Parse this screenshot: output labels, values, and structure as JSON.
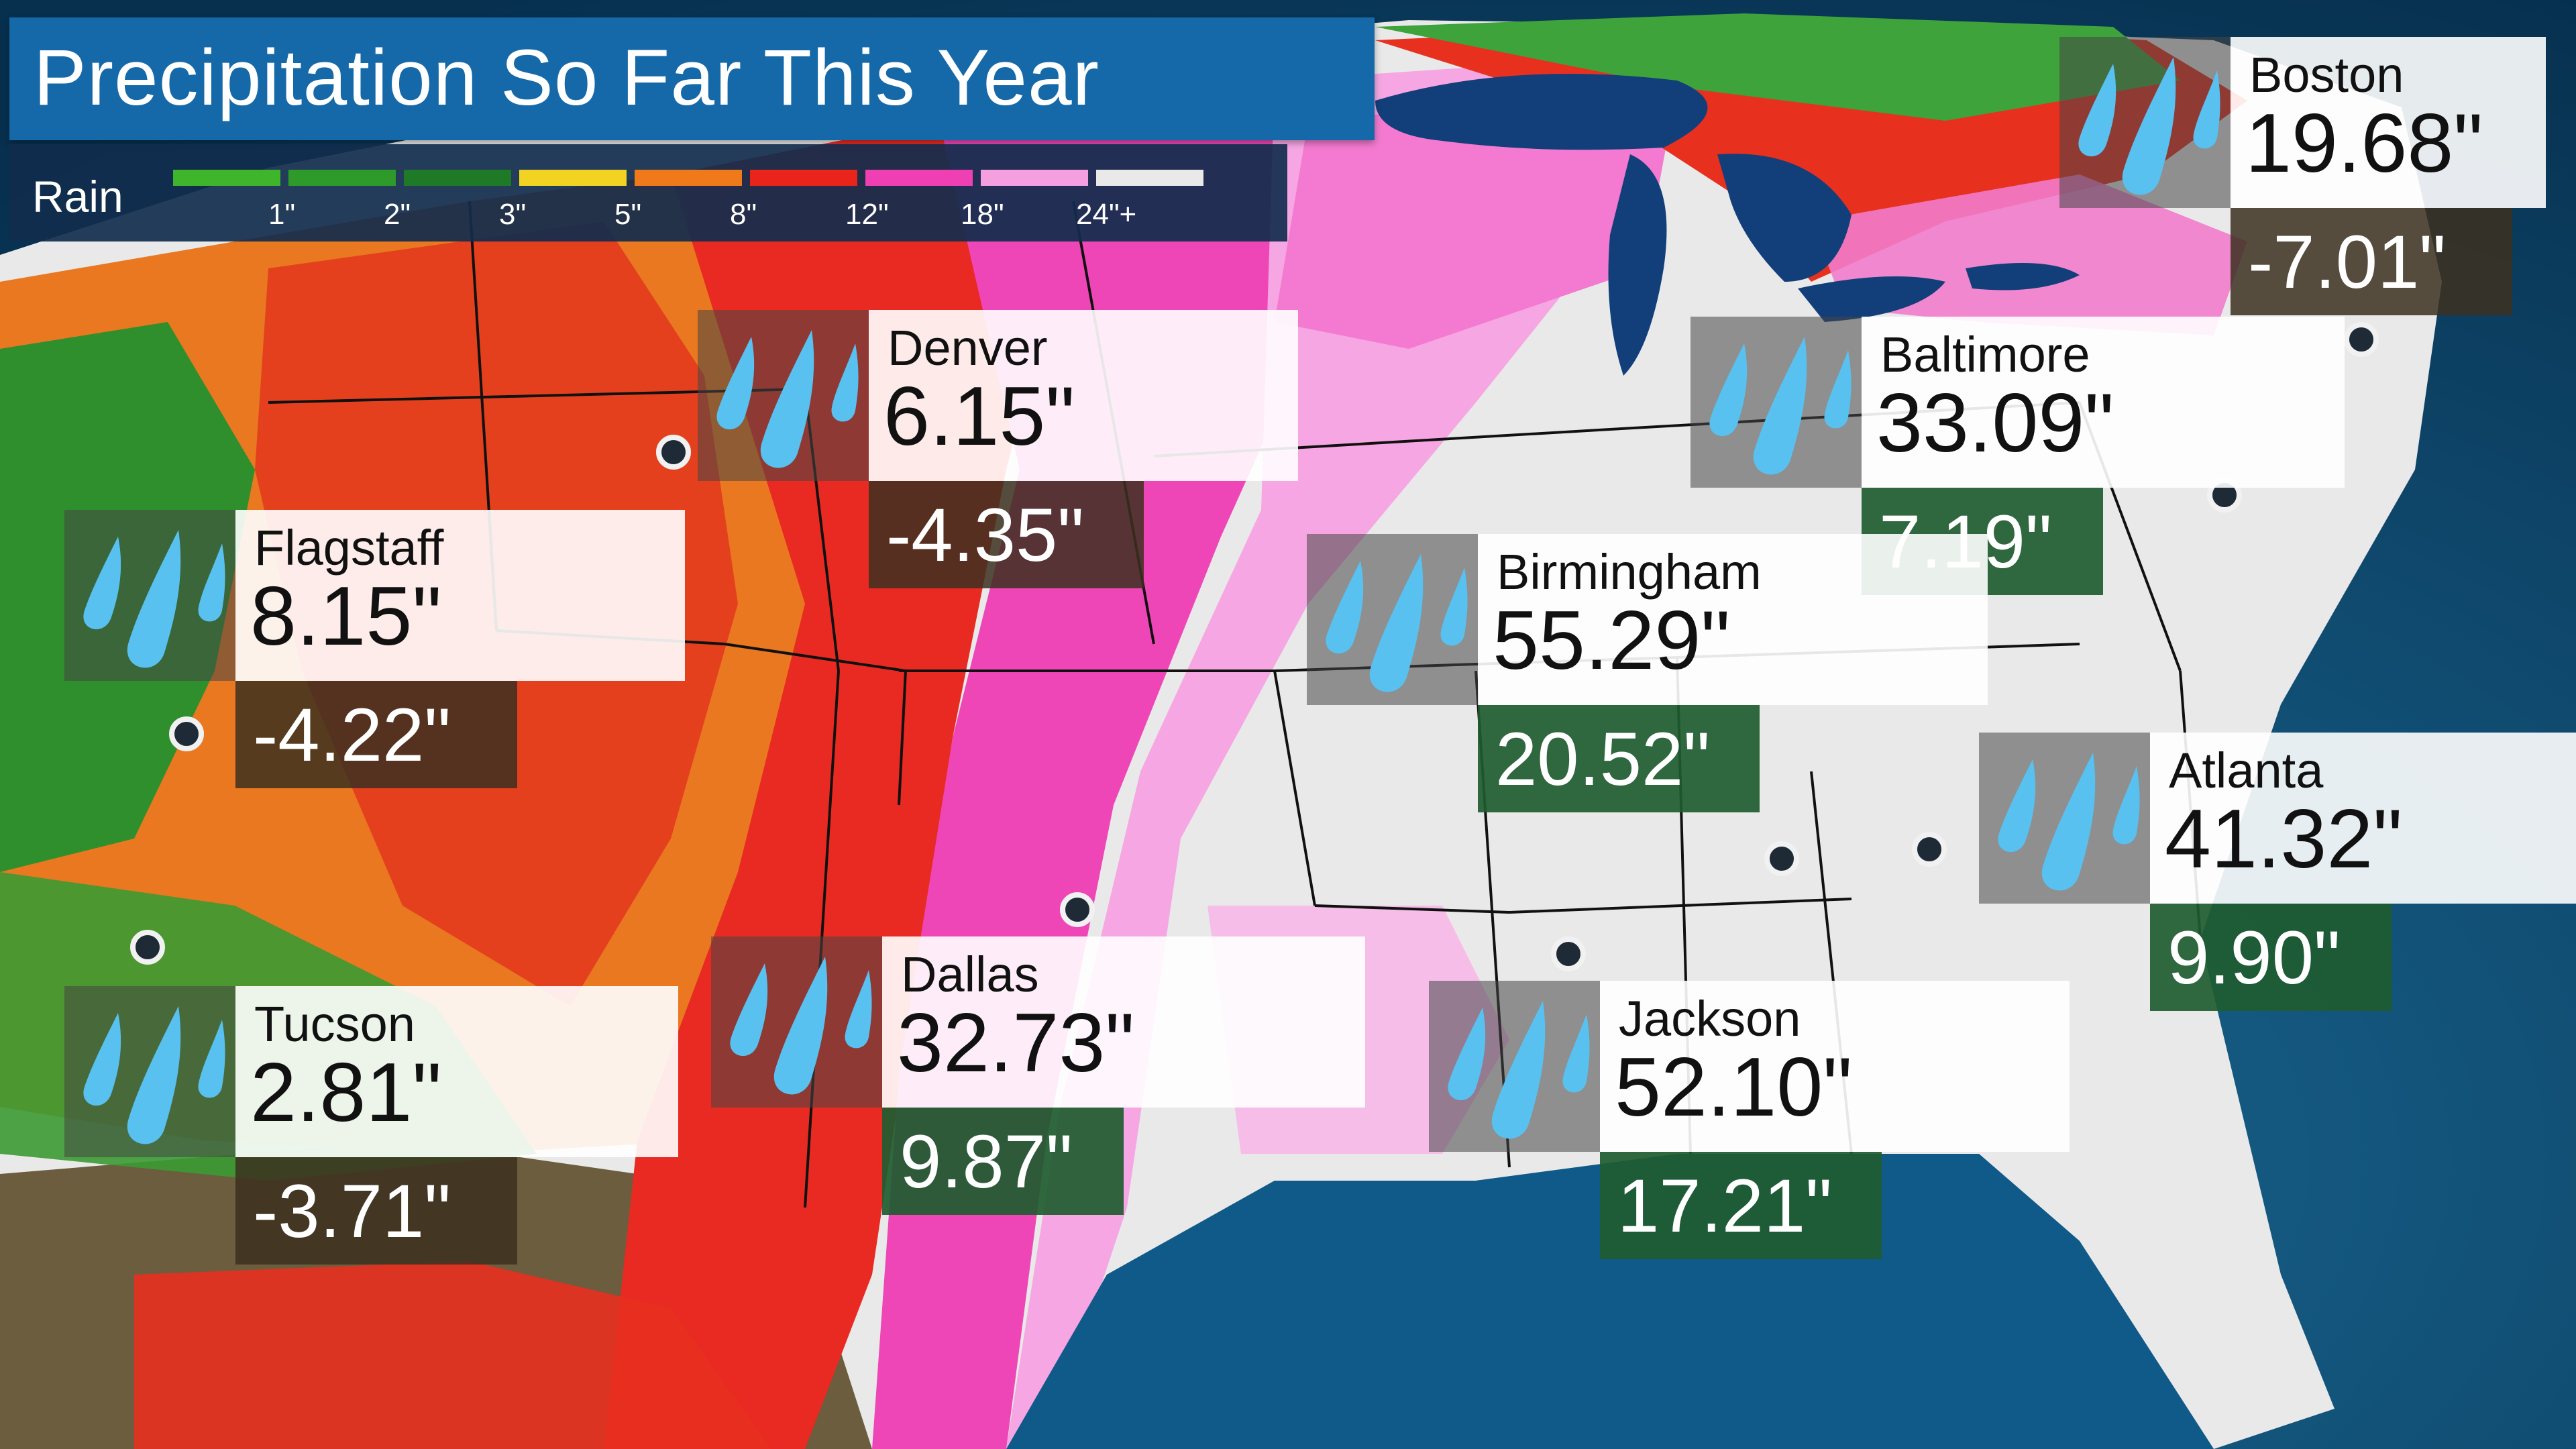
{
  "title": "Precipitation So Far This Year",
  "legend": {
    "label": "Rain",
    "colors": [
      "#3fb52b",
      "#2d9a2a",
      "#1f7a28",
      "#f2d321",
      "#f07a1a",
      "#e8241b",
      "#ee3fb3",
      "#f59fe0",
      "#e9e9e9"
    ],
    "ticks": [
      "1\"",
      "2\"",
      "3\"",
      "5\"",
      "8\"",
      "12\"",
      "18\"",
      "24\"+"
    ]
  },
  "map_colors": {
    "ocean": "#0d4f7a",
    "land_light": "#ececec",
    "lakes": "#123f7a",
    "borders": "#111111"
  },
  "cities": [
    {
      "name": "Boston",
      "total": "19.68\"",
      "departure": "-7.01\"",
      "departure_sign": "negative"
    },
    {
      "name": "Denver",
      "total": "6.15\"",
      "departure": "-4.35\"",
      "departure_sign": "negative"
    },
    {
      "name": "Baltimore",
      "total": "33.09\"",
      "departure": "7.19\"",
      "departure_sign": "positive"
    },
    {
      "name": "Flagstaff",
      "total": "8.15\"",
      "departure": "-4.22\"",
      "departure_sign": "negative"
    },
    {
      "name": "Birmingham",
      "total": "55.29\"",
      "departure": "20.52\"",
      "departure_sign": "positive"
    },
    {
      "name": "Atlanta",
      "total": "41.32\"",
      "departure": "9.90\"",
      "departure_sign": "positive"
    },
    {
      "name": "Tucson",
      "total": "2.81\"",
      "departure": "-3.71\"",
      "departure_sign": "negative"
    },
    {
      "name": "Dallas",
      "total": "32.73\"",
      "departure": "9.87\"",
      "departure_sign": "positive"
    },
    {
      "name": "Jackson",
      "total": "52.10\"",
      "departure": "17.21\"",
      "departure_sign": "positive"
    }
  ],
  "icons": {
    "city_icon": "rain-drops-icon",
    "marker": "city-dot-icon"
  }
}
